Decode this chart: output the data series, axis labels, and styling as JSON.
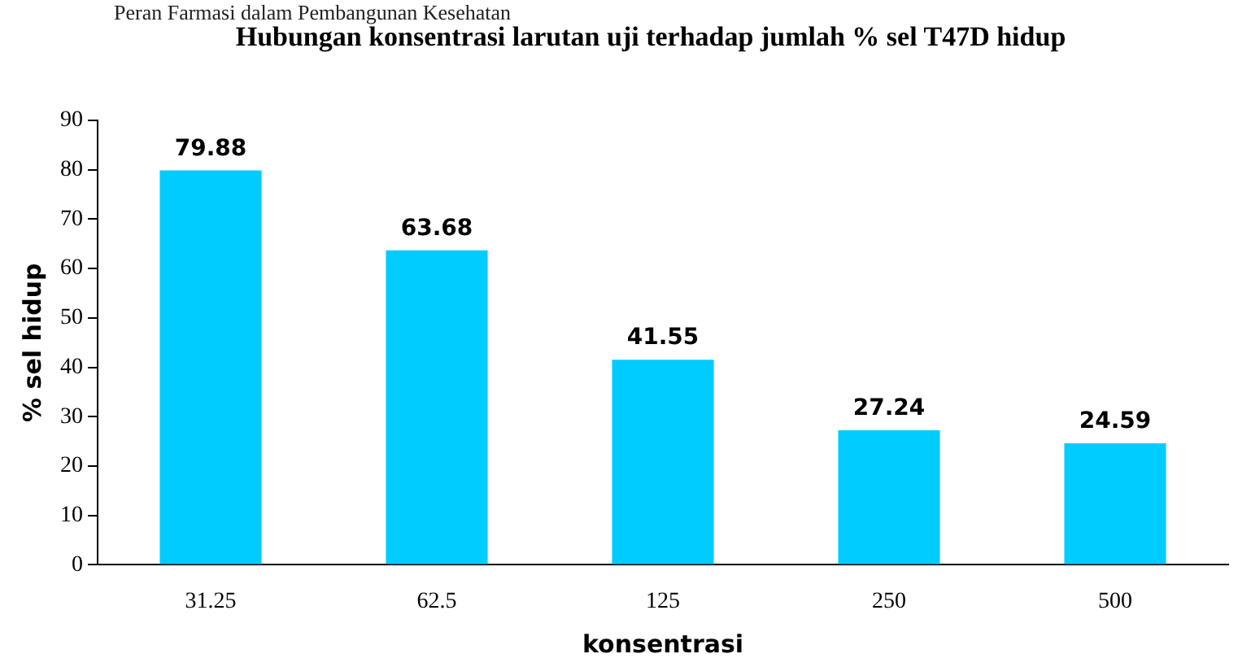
{
  "chart_data": {
    "type": "bar",
    "title": "Hubungan konsentrasi larutan uji terhadap jumlah % sel T47D hidup",
    "xlabel": "konsentrasi",
    "ylabel": "% sel hidup",
    "annotations": [
      "Peran Farmasi dalam Pembangunan Kesehatan"
    ],
    "categories": [
      "31.25",
      "62.5",
      "125",
      "250",
      "500"
    ],
    "values": [
      79.88,
      63.68,
      41.55,
      27.24,
      24.59
    ],
    "color": "#00ccff",
    "ylim": [
      0,
      90
    ],
    "yticks": [
      0,
      10,
      20,
      30,
      40,
      50,
      60,
      70,
      80,
      90
    ],
    "grid": false,
    "legend": false,
    "data_labels": true
  }
}
